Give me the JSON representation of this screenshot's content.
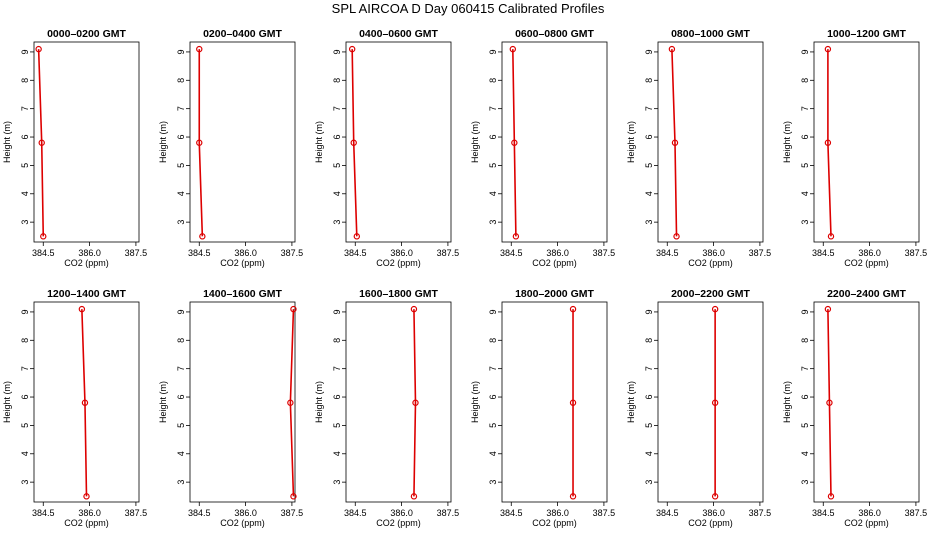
{
  "title": "SPL AIRCOA D  Day 060415  Calibrated Profiles",
  "chart_data": {
    "type": "line",
    "shared": {
      "xlabel": "CO2 (ppm)",
      "ylabel": "Height (m)",
      "xlim": [
        384.2,
        387.6
      ],
      "ylim": [
        2.3,
        9.35
      ],
      "x_ticks": [
        384.5,
        386.0,
        387.5
      ],
      "x_tick_labels": [
        "384.5",
        "386.0",
        "387.5"
      ],
      "y_ticks": [
        3,
        4,
        5,
        6,
        7,
        8,
        9
      ],
      "y_tick_labels": [
        "3",
        "4",
        "5",
        "6",
        "7",
        "8",
        "9"
      ],
      "line_color": "#dd0000",
      "grid": false
    },
    "panels": [
      {
        "title": "0000–0200 GMT",
        "points": [
          {
            "x": 384.35,
            "y": 9.1
          },
          {
            "x": 384.45,
            "y": 5.8
          },
          {
            "x": 384.5,
            "y": 2.5
          }
        ]
      },
      {
        "title": "0200–0400 GMT",
        "points": [
          {
            "x": 384.5,
            "y": 9.1
          },
          {
            "x": 384.5,
            "y": 5.8
          },
          {
            "x": 384.6,
            "y": 2.5
          }
        ]
      },
      {
        "title": "0400–0600 GMT",
        "points": [
          {
            "x": 384.4,
            "y": 9.1
          },
          {
            "x": 384.45,
            "y": 5.8
          },
          {
            "x": 384.55,
            "y": 2.5
          }
        ]
      },
      {
        "title": "0600–0800 GMT",
        "points": [
          {
            "x": 384.55,
            "y": 9.1
          },
          {
            "x": 384.6,
            "y": 5.8
          },
          {
            "x": 384.65,
            "y": 2.5
          }
        ]
      },
      {
        "title": "0800–1000 GMT",
        "points": [
          {
            "x": 384.65,
            "y": 9.1
          },
          {
            "x": 384.75,
            "y": 5.8
          },
          {
            "x": 384.8,
            "y": 2.5
          }
        ]
      },
      {
        "title": "1000–1200 GMT",
        "points": [
          {
            "x": 384.65,
            "y": 9.1
          },
          {
            "x": 384.65,
            "y": 5.8
          },
          {
            "x": 384.75,
            "y": 2.5
          }
        ]
      },
      {
        "title": "1200–1400 GMT",
        "points": [
          {
            "x": 385.75,
            "y": 9.1
          },
          {
            "x": 385.85,
            "y": 5.8
          },
          {
            "x": 385.9,
            "y": 2.5
          }
        ]
      },
      {
        "title": "1400–1600 GMT",
        "points": [
          {
            "x": 387.55,
            "y": 9.1
          },
          {
            "x": 387.45,
            "y": 5.8
          },
          {
            "x": 387.55,
            "y": 2.5
          }
        ]
      },
      {
        "title": "1600–1800 GMT",
        "points": [
          {
            "x": 386.4,
            "y": 9.1
          },
          {
            "x": 386.45,
            "y": 5.8
          },
          {
            "x": 386.4,
            "y": 2.5
          }
        ]
      },
      {
        "title": "1800–2000 GMT",
        "points": [
          {
            "x": 386.5,
            "y": 9.1
          },
          {
            "x": 386.5,
            "y": 5.8
          },
          {
            "x": 386.5,
            "y": 2.5
          }
        ]
      },
      {
        "title": "2000–2200 GMT",
        "points": [
          {
            "x": 386.05,
            "y": 9.1
          },
          {
            "x": 386.05,
            "y": 5.8
          },
          {
            "x": 386.05,
            "y": 2.5
          }
        ]
      },
      {
        "title": "2200–2400 GMT",
        "points": [
          {
            "x": 384.65,
            "y": 9.1
          },
          {
            "x": 384.7,
            "y": 5.8
          },
          {
            "x": 384.75,
            "y": 2.5
          }
        ]
      }
    ]
  }
}
